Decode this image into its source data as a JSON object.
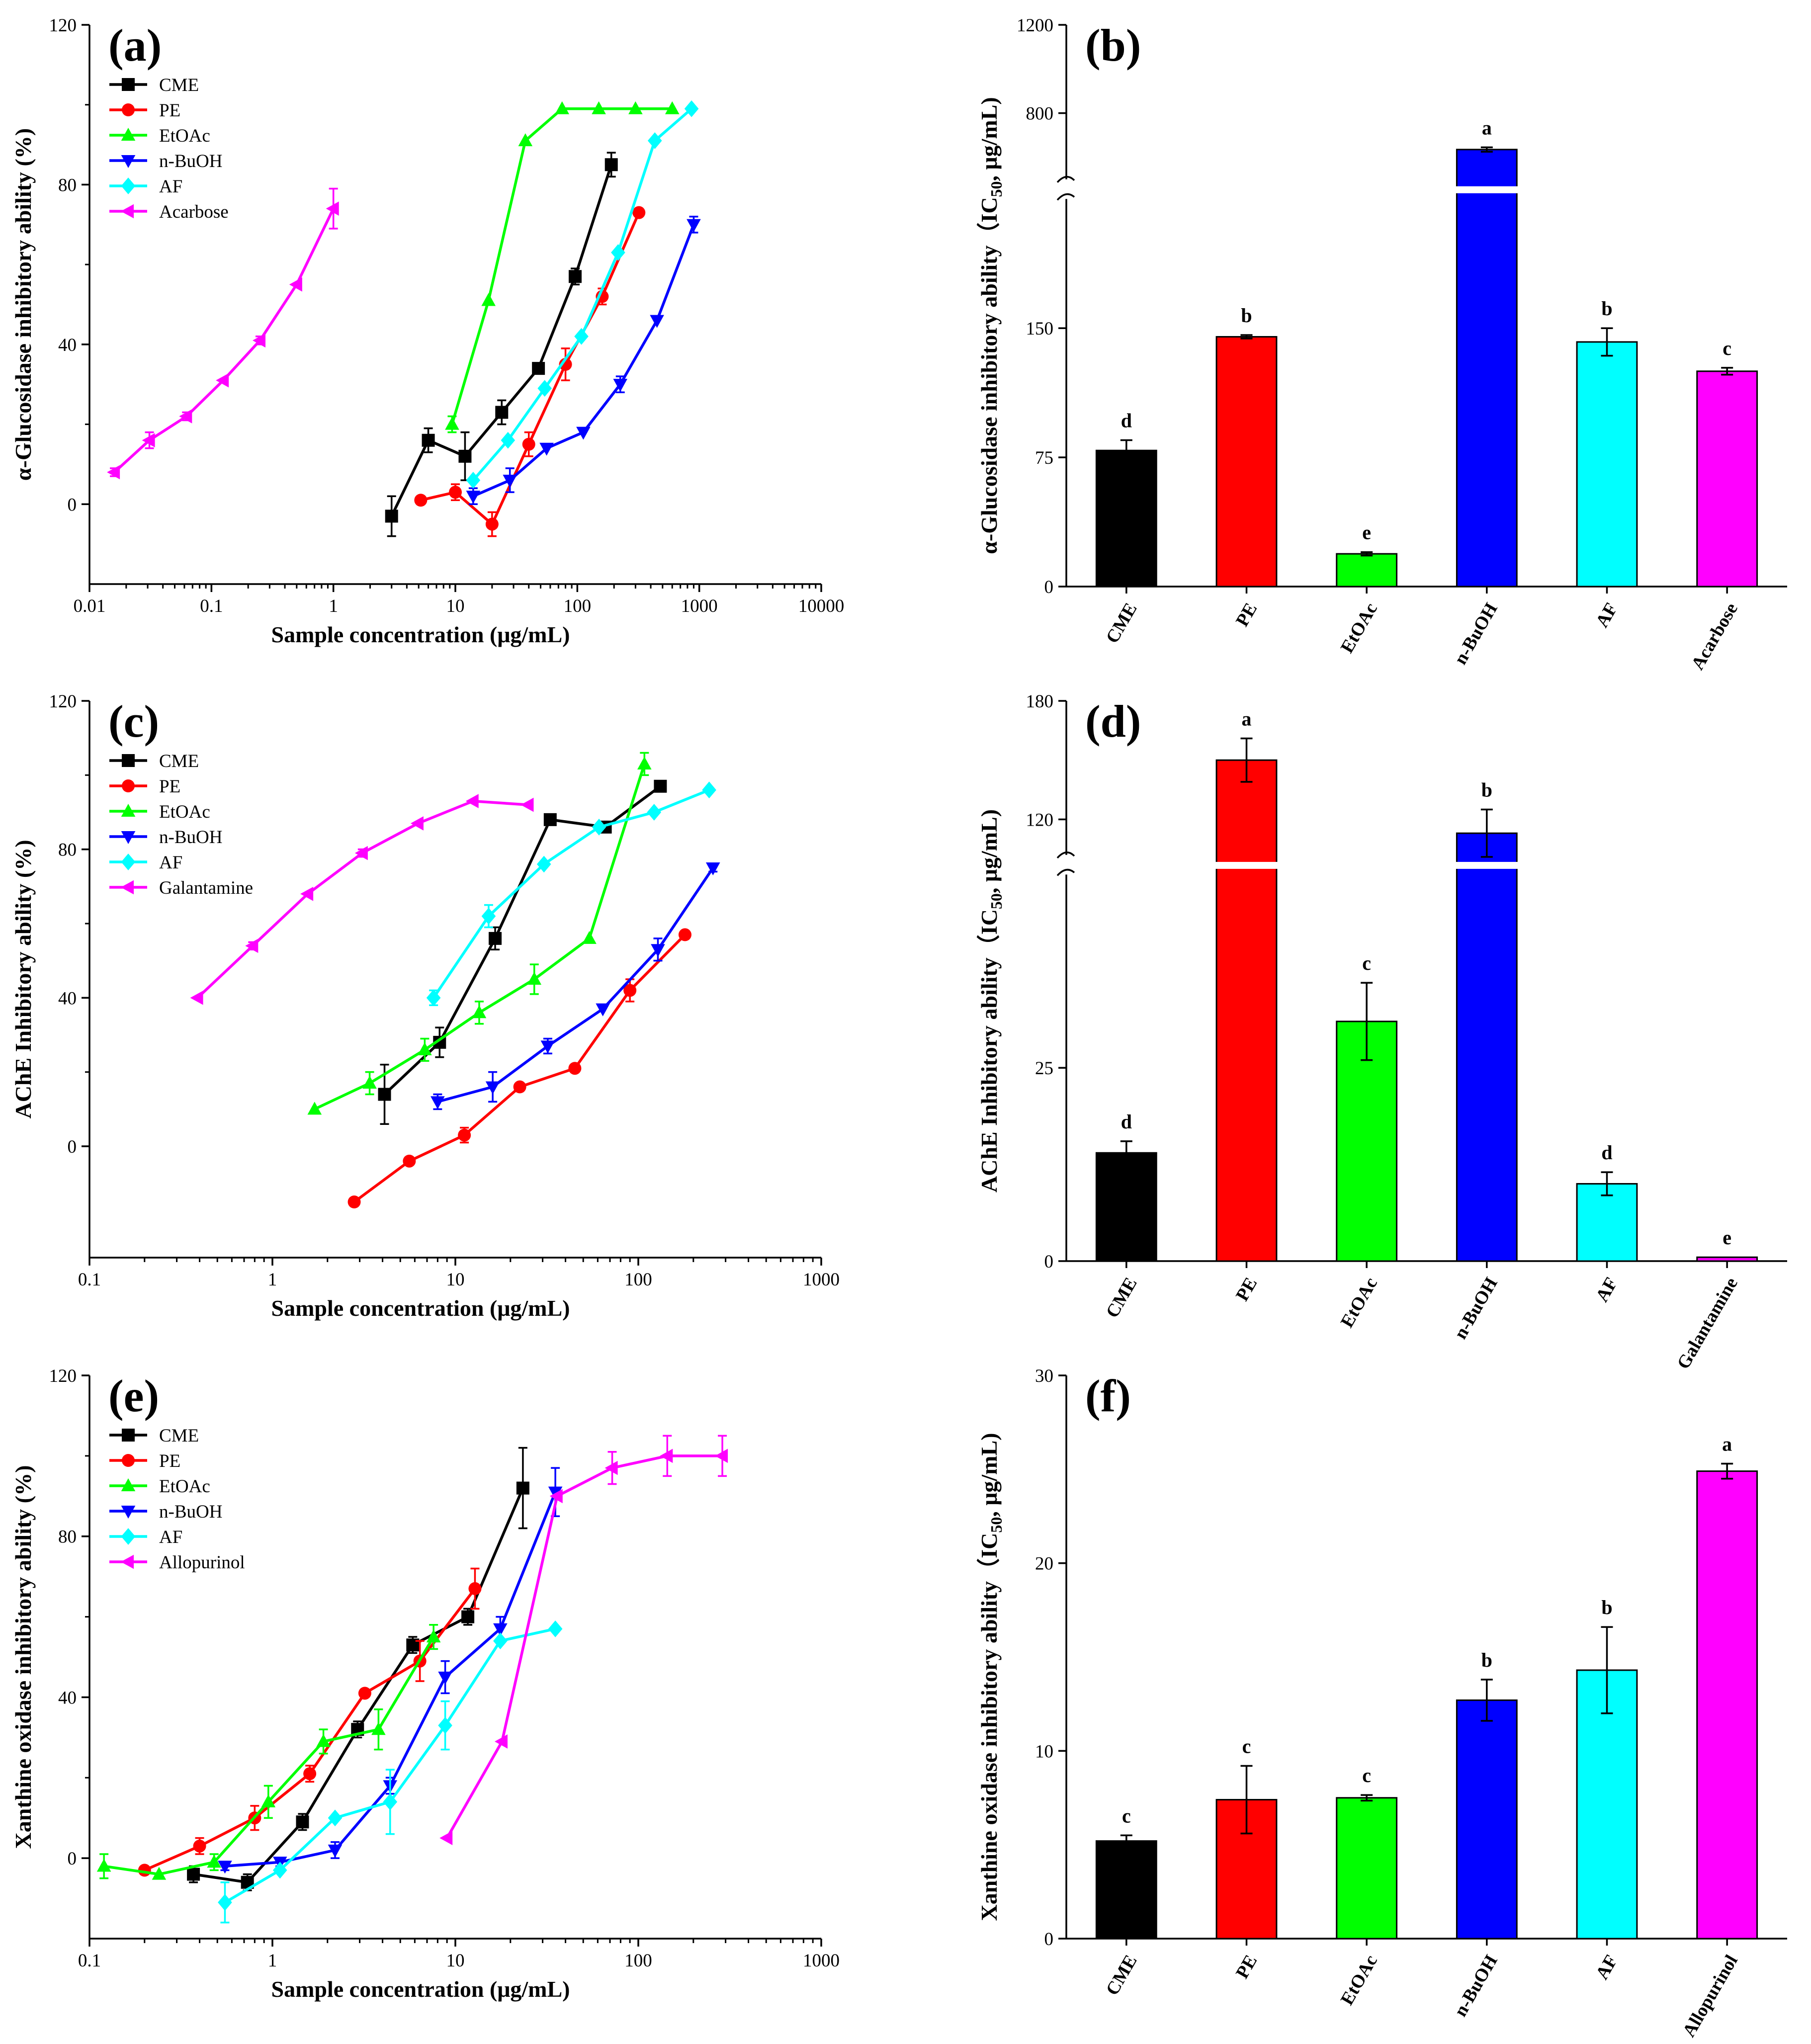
{
  "chart_data": [
    {
      "id": "a",
      "panel_label": "(a)",
      "type": "line",
      "xscale": "log",
      "xlim": [
        0.01,
        10000
      ],
      "ylim": [
        -20,
        120
      ],
      "xticks": [
        0.01,
        0.1,
        1,
        10,
        100,
        1000,
        10000
      ],
      "xtick_labels": [
        "0.01",
        "0.1",
        "1",
        "10",
        "100",
        "1000",
        "10000"
      ],
      "yticks": [
        0,
        40,
        80,
        120
      ],
      "ytick_labels": [
        "0",
        "40",
        "80",
        "120"
      ],
      "xlabel": "Sample concentration (μg/mL)",
      "ylabel": "α-Glucosidase inhibitory ability (%)",
      "legend_position": "top-left",
      "series": [
        {
          "name": "CME",
          "color": "#000000",
          "marker": "square",
          "x": [
            3,
            6,
            12,
            24,
            48,
            96,
            190
          ],
          "y": [
            -3,
            16,
            12,
            23,
            34,
            57,
            85
          ],
          "err": [
            5,
            3,
            6,
            3,
            1,
            2,
            3
          ]
        },
        {
          "name": "PE",
          "color": "#ff0000",
          "marker": "circle",
          "x": [
            5.2,
            10,
            20,
            40,
            80,
            160,
            320
          ],
          "y": [
            1,
            3,
            -5,
            15,
            35,
            52,
            73
          ],
          "err": [
            0,
            2,
            3,
            3,
            4,
            2,
            0
          ]
        },
        {
          "name": "EtOAc",
          "color": "#00ff00",
          "marker": "triangle-up",
          "x": [
            9.4,
            18.7,
            37.5,
            75,
            150,
            300,
            600
          ],
          "y": [
            20,
            51,
            91,
            99,
            99,
            99,
            99
          ],
          "err": [
            2,
            0,
            0,
            0,
            0,
            0,
            0
          ]
        },
        {
          "name": "n-BuOH",
          "color": "#0000ff",
          "marker": "triangle-down",
          "x": [
            14,
            28,
            56,
            112,
            225,
            450,
            900
          ],
          "y": [
            2,
            6,
            14,
            18,
            30,
            46,
            70
          ],
          "err": [
            2,
            3,
            0,
            0,
            2,
            0,
            2
          ]
        },
        {
          "name": "AF",
          "color": "#00ffff",
          "marker": "diamond",
          "x": [
            14,
            27,
            54,
            108,
            216,
            432,
            864
          ],
          "y": [
            6,
            16,
            29,
            42,
            63,
            91,
            99
          ],
          "err": [
            0,
            0,
            0,
            0,
            0,
            0,
            0
          ]
        },
        {
          "name": "Acarbose",
          "color": "#ff00ff",
          "marker": "triangle-left",
          "x": [
            0.016,
            0.031,
            0.0625,
            0.125,
            0.25,
            0.5,
            1.0
          ],
          "y": [
            8,
            16,
            22,
            31,
            41,
            55,
            74
          ],
          "err": [
            1,
            2,
            1,
            0,
            1,
            0,
            5
          ]
        }
      ]
    },
    {
      "id": "b",
      "panel_label": "(b)",
      "type": "bar",
      "axis_break": true,
      "categories": [
        "CME",
        "PE",
        "EtOAc",
        "n-BuOH",
        "AF",
        "Acarbose"
      ],
      "values": [
        79,
        145,
        19,
        635,
        142,
        125
      ],
      "errors": [
        6,
        1,
        1,
        10,
        8,
        2
      ],
      "letters": [
        "d",
        "b",
        "e",
        "a",
        "b",
        "c"
      ],
      "colors": [
        "#000000",
        "#ff0000",
        "#00ff00",
        "#0000ff",
        "#00ffff",
        "#ff00ff"
      ],
      "lower_ylim": [
        0,
        225
      ],
      "lower_yticks": [
        0,
        75,
        150
      ],
      "lower_ytick_labels": [
        "0",
        "75",
        "150"
      ],
      "upper_ylim": [
        500,
        1200
      ],
      "upper_yticks": [
        800,
        1200
      ],
      "upper_ytick_labels": [
        "800",
        "1200"
      ],
      "ylabel": "α-Glucosidase inhibitory  ability（IC",
      "ylabel_sub": "50",
      "ylabel_tail": ", μg/mL)"
    },
    {
      "id": "c",
      "panel_label": "(c)",
      "type": "line",
      "xscale": "log",
      "xlim": [
        0.1,
        1000
      ],
      "ylim": [
        -30,
        120
      ],
      "xticks": [
        0.1,
        1,
        10,
        100,
        1000
      ],
      "xtick_labels": [
        "0.1",
        "1",
        "10",
        "100",
        "1000"
      ],
      "yticks": [
        0,
        40,
        80,
        120
      ],
      "ytick_labels": [
        "0",
        "40",
        "80",
        "120"
      ],
      "xlabel": "Sample concentration (μg/mL)",
      "ylabel": "AChE Inhibitory  ability (%)",
      "legend_position": "top-left",
      "series": [
        {
          "name": "CME",
          "color": "#000000",
          "marker": "square",
          "x": [
            4.1,
            8.2,
            16.5,
            33,
            66,
            132
          ],
          "y": [
            14,
            28,
            56,
            88,
            86,
            97
          ],
          "err": [
            8,
            4,
            3,
            0,
            1,
            0
          ]
        },
        {
          "name": "PE",
          "color": "#ff0000",
          "marker": "circle",
          "x": [
            2.8,
            5.6,
            11.2,
            22.5,
            45,
            90,
            180
          ],
          "y": [
            -15,
            -4,
            3,
            16,
            21,
            42,
            57
          ],
          "err": [
            0,
            1,
            2,
            1,
            0,
            3,
            0
          ]
        },
        {
          "name": "EtOAc",
          "color": "#00ff00",
          "marker": "triangle-up",
          "x": [
            1.7,
            3.4,
            6.8,
            13.5,
            27,
            54,
            108
          ],
          "y": [
            10,
            17,
            26,
            36,
            45,
            56,
            103
          ],
          "err": [
            0,
            3,
            3,
            3,
            4,
            0,
            3
          ]
        },
        {
          "name": "n-BuOH",
          "color": "#0000ff",
          "marker": "triangle-down",
          "x": [
            8,
            16,
            32,
            64,
            128,
            256
          ],
          "y": [
            12,
            16,
            27,
            37,
            53,
            75
          ],
          "err": [
            2,
            4,
            2,
            0,
            3,
            1
          ]
        },
        {
          "name": "AF",
          "color": "#00ffff",
          "marker": "diamond",
          "x": [
            7.6,
            15.2,
            30.5,
            61,
            122,
            244
          ],
          "y": [
            40,
            62,
            76,
            86,
            90,
            96
          ],
          "err": [
            2,
            3,
            0,
            0,
            0,
            0
          ]
        },
        {
          "name": "Galantamine",
          "color": "#ff00ff",
          "marker": "triangle-left",
          "x": [
            0.39,
            0.78,
            1.56,
            3.1,
            6.25,
            12.5,
            25
          ],
          "y": [
            40,
            54,
            68,
            79,
            87,
            93,
            92
          ],
          "err": [
            0,
            1,
            0,
            1,
            0,
            0,
            0
          ]
        }
      ]
    },
    {
      "id": "d",
      "panel_label": "(d)",
      "type": "bar",
      "axis_break": true,
      "categories": [
        "CME",
        "PE",
        "EtOAc",
        "n-BuOH",
        "AF",
        "Galantamine"
      ],
      "values": [
        14,
        150,
        31,
        113,
        10,
        0.5
      ],
      "errors": [
        1.5,
        11,
        5,
        12,
        1.5,
        0
      ],
      "letters": [
        "d",
        "a",
        "c",
        "b",
        "d",
        "e"
      ],
      "colors": [
        "#000000",
        "#ff0000",
        "#00ff00",
        "#0000ff",
        "#00ffff",
        "#ff00ff"
      ],
      "lower_ylim": [
        0,
        50
      ],
      "lower_yticks": [
        0,
        25
      ],
      "lower_ytick_labels": [
        "0",
        "25"
      ],
      "upper_ylim": [
        102,
        180
      ],
      "upper_yticks": [
        120,
        180
      ],
      "upper_ytick_labels": [
        "120",
        "180"
      ],
      "ylabel": "AChE Inhibitory  ability（IC",
      "ylabel_sub": "50",
      "ylabel_tail": ", μg/mL)"
    },
    {
      "id": "e",
      "panel_label": "(e)",
      "type": "line",
      "xscale": "log",
      "xlim": [
        0.1,
        1000
      ],
      "ylim": [
        -20,
        120
      ],
      "xticks": [
        0.1,
        1,
        10,
        100,
        1000
      ],
      "xtick_labels": [
        "0.1",
        "1",
        "10",
        "100",
        "1000"
      ],
      "yticks": [
        0,
        40,
        80,
        120
      ],
      "ytick_labels": [
        "0",
        "40",
        "80",
        "120"
      ],
      "xlabel": "Sample concentration (μg/mL)",
      "ylabel": "Xanthine oxidase inhibitory ability (%)",
      "legend_position": "top-left",
      "series": [
        {
          "name": "CME",
          "color": "#000000",
          "marker": "square",
          "x": [
            0.37,
            0.73,
            1.46,
            2.92,
            5.85,
            11.7,
            23.4
          ],
          "y": [
            -4,
            -6,
            9,
            32,
            53,
            60,
            92
          ],
          "err": [
            2,
            2,
            2,
            2,
            2,
            2,
            10
          ]
        },
        {
          "name": "PE",
          "color": "#ff0000",
          "marker": "circle",
          "x": [
            0.2,
            0.4,
            0.8,
            1.6,
            3.2,
            6.4,
            12.8
          ],
          "y": [
            -3,
            3,
            10,
            21,
            41,
            49,
            67
          ],
          "err": [
            0,
            2,
            3,
            2,
            0,
            5,
            5
          ]
        },
        {
          "name": "EtOAc",
          "color": "#00ff00",
          "marker": "triangle-up",
          "x": [
            0.12,
            0.24,
            0.48,
            0.95,
            1.9,
            3.8,
            7.6
          ],
          "y": [
            -2,
            -4,
            -1,
            14,
            29,
            32,
            55
          ],
          "err": [
            3,
            0,
            2,
            4,
            3,
            5,
            3
          ]
        },
        {
          "name": "n-BuOH",
          "color": "#0000ff",
          "marker": "triangle-down",
          "x": [
            0.55,
            1.1,
            2.2,
            4.4,
            8.8,
            17.6,
            35.2
          ],
          "y": [
            -2,
            -1,
            2,
            18,
            45,
            57,
            91
          ],
          "err": [
            1,
            1,
            2,
            2,
            4,
            3,
            6
          ]
        },
        {
          "name": "AF",
          "color": "#00ffff",
          "marker": "diamond",
          "x": [
            0.55,
            1.1,
            2.2,
            4.4,
            8.8,
            17.6,
            35.2
          ],
          "y": [
            -11,
            -3,
            10,
            14,
            33,
            54,
            57
          ],
          "err": [
            5,
            0,
            0,
            8,
            6,
            0,
            0
          ]
        },
        {
          "name": "Allopurinol",
          "color": "#ff00ff",
          "marker": "triangle-left",
          "x": [
            9,
            18,
            36,
            72,
            144,
            288
          ],
          "y": [
            5,
            29,
            90,
            97,
            100,
            100
          ],
          "err": [
            0,
            0,
            0,
            4,
            5,
            5
          ]
        }
      ]
    },
    {
      "id": "f",
      "panel_label": "(f)",
      "type": "bar",
      "axis_break": false,
      "categories": [
        "CME",
        "PE",
        "EtOAc",
        "n-BuOH",
        "AF",
        "Allopurinol"
      ],
      "values": [
        5.2,
        7.4,
        7.5,
        12.7,
        14.3,
        24.9
      ],
      "errors": [
        0.3,
        1.8,
        0.15,
        1.1,
        2.3,
        0.4
      ],
      "letters": [
        "c",
        "c",
        "c",
        "b",
        "b",
        "a"
      ],
      "colors": [
        "#000000",
        "#ff0000",
        "#00ff00",
        "#0000ff",
        "#00ffff",
        "#ff00ff"
      ],
      "ylim": [
        0,
        30
      ],
      "yticks": [
        0,
        10,
        20,
        30
      ],
      "ytick_labels": [
        "0",
        "10",
        "20",
        "30"
      ],
      "ylabel": "Xanthine oxidase inhibitory ability（IC",
      "ylabel_sub": "50",
      "ylabel_tail": ", μg/mL)"
    }
  ]
}
